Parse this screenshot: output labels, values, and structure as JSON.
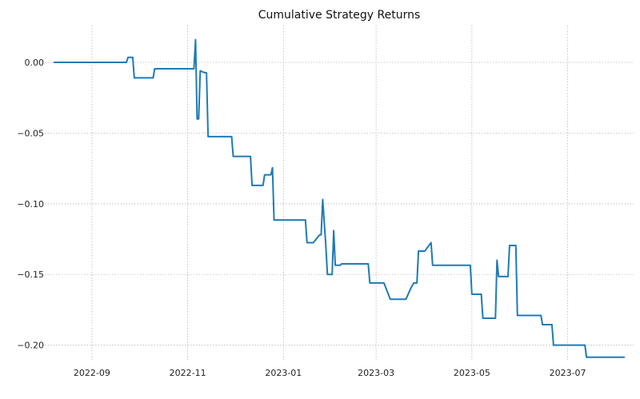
{
  "chart_data": {
    "type": "line",
    "title": "Cumulative Strategy Returns",
    "xlabel": "",
    "ylabel": "",
    "grid": true,
    "x_axis_type": "date",
    "xlim": [
      "2022-08-02",
      "2023-08-12"
    ],
    "ylim": [
      -0.2115,
      0.026
    ],
    "x_ticks": [
      {
        "date": "2022-09-01",
        "label": "2022-09"
      },
      {
        "date": "2022-11-01",
        "label": "2022-11"
      },
      {
        "date": "2023-01-01",
        "label": "2023-01"
      },
      {
        "date": "2023-03-01",
        "label": "2023-03"
      },
      {
        "date": "2023-05-01",
        "label": "2023-05"
      },
      {
        "date": "2023-07-01",
        "label": "2023-07"
      }
    ],
    "y_ticks": [
      {
        "value": 0.0,
        "label": "0.00"
      },
      {
        "value": -0.05,
        "label": "−0.05"
      },
      {
        "value": -0.1,
        "label": "−0.10"
      },
      {
        "value": -0.15,
        "label": "−0.15"
      },
      {
        "value": -0.2,
        "label": "−0.20"
      }
    ],
    "line_color": "#1f7bb4",
    "series": [
      {
        "points": [
          [
            "2022-08-08",
            0.0
          ],
          [
            "2022-09-23",
            0.0
          ],
          [
            "2022-09-24",
            0.0035
          ],
          [
            "2022-09-27",
            0.0035
          ],
          [
            "2022-09-28",
            -0.011
          ],
          [
            "2022-10-10",
            -0.011
          ],
          [
            "2022-10-11",
            -0.0045
          ],
          [
            "2022-11-04",
            -0.0045
          ],
          [
            "2022-11-05",
            -0.0045
          ],
          [
            "2022-11-06",
            0.016
          ],
          [
            "2022-11-07",
            -0.04
          ],
          [
            "2022-11-08",
            -0.04
          ],
          [
            "2022-11-09",
            -0.006
          ],
          [
            "2022-11-11",
            -0.007
          ],
          [
            "2022-11-13",
            -0.0075
          ],
          [
            "2022-11-14",
            -0.0525
          ],
          [
            "2022-11-29",
            -0.0525
          ],
          [
            "2022-11-30",
            -0.0665
          ],
          [
            "2022-12-11",
            -0.0665
          ],
          [
            "2022-12-12",
            -0.087
          ],
          [
            "2022-12-19",
            -0.087
          ],
          [
            "2022-12-20",
            -0.0795
          ],
          [
            "2022-12-24",
            -0.0795
          ],
          [
            "2022-12-25",
            -0.0745
          ],
          [
            "2022-12-26",
            -0.1115
          ],
          [
            "2023-01-15",
            -0.1115
          ],
          [
            "2023-01-16",
            -0.1275
          ],
          [
            "2023-01-20",
            -0.1275
          ],
          [
            "2023-01-24",
            -0.122
          ],
          [
            "2023-01-25",
            -0.122
          ],
          [
            "2023-01-26",
            -0.097
          ],
          [
            "2023-01-28",
            -0.13
          ],
          [
            "2023-01-29",
            -0.15
          ],
          [
            "2023-02-01",
            -0.15
          ],
          [
            "2023-02-02",
            -0.119
          ],
          [
            "2023-02-03",
            -0.1435
          ],
          [
            "2023-02-06",
            -0.1435
          ],
          [
            "2023-02-07",
            -0.1425
          ],
          [
            "2023-02-24",
            -0.1425
          ],
          [
            "2023-02-25",
            -0.156
          ],
          [
            "2023-03-06",
            -0.156
          ],
          [
            "2023-03-10",
            -0.1675
          ],
          [
            "2023-03-20",
            -0.1675
          ],
          [
            "2023-03-23",
            -0.16
          ],
          [
            "2023-03-25",
            -0.156
          ],
          [
            "2023-03-27",
            -0.156
          ],
          [
            "2023-03-28",
            -0.1335
          ],
          [
            "2023-03-31",
            -0.1335
          ],
          [
            "2023-04-01",
            -0.1335
          ],
          [
            "2023-04-03",
            -0.1305
          ],
          [
            "2023-04-05",
            -0.1275
          ],
          [
            "2023-04-06",
            -0.1435
          ],
          [
            "2023-04-30",
            -0.1435
          ],
          [
            "2023-05-01",
            -0.164
          ],
          [
            "2023-05-07",
            -0.164
          ],
          [
            "2023-05-08",
            -0.181
          ],
          [
            "2023-05-16",
            -0.181
          ],
          [
            "2023-05-17",
            -0.14
          ],
          [
            "2023-05-18",
            -0.1515
          ],
          [
            "2023-05-24",
            -0.1515
          ],
          [
            "2023-05-25",
            -0.1295
          ],
          [
            "2023-05-29",
            -0.1295
          ],
          [
            "2023-05-30",
            -0.179
          ],
          [
            "2023-06-14",
            -0.179
          ],
          [
            "2023-06-15",
            -0.1855
          ],
          [
            "2023-06-21",
            -0.1855
          ],
          [
            "2023-06-22",
            -0.2
          ],
          [
            "2023-07-12",
            -0.2
          ],
          [
            "2023-07-13",
            -0.2085
          ],
          [
            "2023-08-06",
            -0.2085
          ]
        ]
      }
    ]
  }
}
